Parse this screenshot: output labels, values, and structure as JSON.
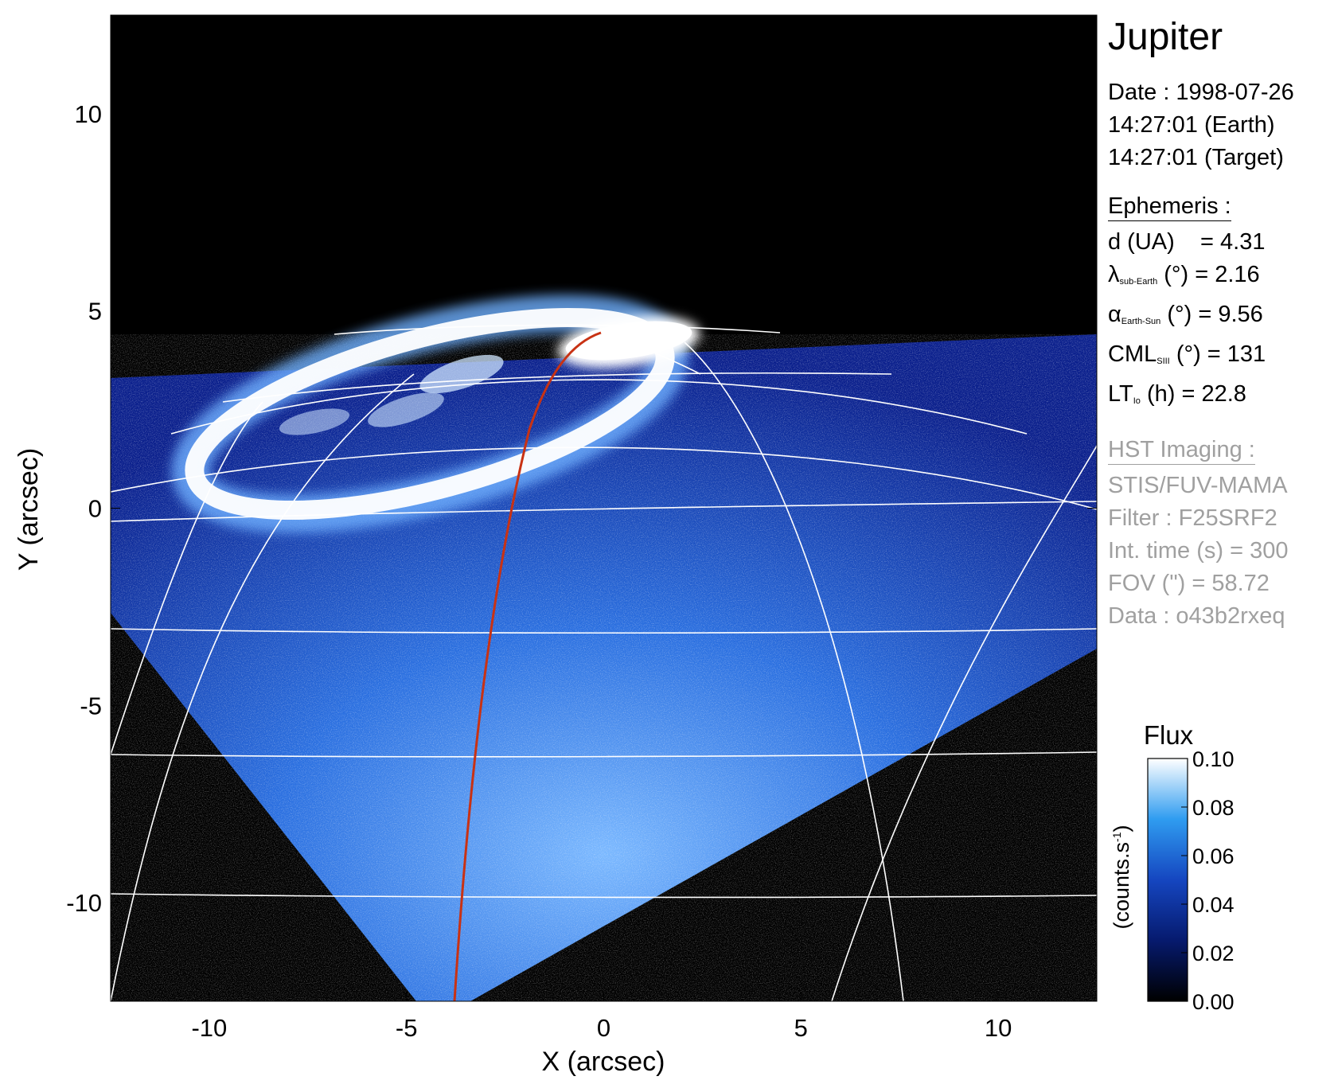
{
  "chart_data": {
    "type": "heatmap",
    "title": "Jupiter",
    "xlabel": "X (arcsec)",
    "ylabel": "Y (arcsec)",
    "xlim": [
      -12.5,
      12.5
    ],
    "ylim": [
      -12.5,
      12.5
    ],
    "x_ticks": [
      -10,
      -5,
      0,
      5,
      10
    ],
    "y_ticks": [
      10,
      5,
      0,
      -5,
      -10
    ],
    "x_tick_labels": [
      "-10",
      "-5",
      "0",
      "5",
      "10"
    ],
    "y_tick_labels": [
      "10",
      "5",
      "0",
      "-5",
      "-10"
    ],
    "colorbar": {
      "title": "Flux",
      "label": "(counts.s",
      "label_sup": "-1",
      "label_end": ")",
      "range": [
        0.0,
        0.1
      ],
      "ticks": [
        0.1,
        0.08,
        0.06,
        0.04,
        0.02,
        0.0
      ],
      "tick_labels": [
        "0.10",
        "0.08",
        "0.06",
        "0.04",
        "0.02",
        "0.00"
      ]
    },
    "colors": {
      "background": "#000000",
      "disk_low": "#0a1f8c",
      "disk_mid": "#2a6fe0",
      "disk_high": "#7ab8ff",
      "aurora": "#ffffff",
      "grid": "#ffffff",
      "footprint_line": "#c83214"
    }
  },
  "info": {
    "target": "Jupiter",
    "date": "Date : 1998-07-26",
    "time_earth": "14:27:01 (Earth)",
    "time_target": "14:27:01 (Target)",
    "ephemeris_title": "Ephemeris :",
    "d_label": "d (UA)",
    "d_value": "= 4.31",
    "lambda_symbol": "λ",
    "lambda_sub": "sub-Earth",
    "lambda_value": "(°) = 2.16",
    "alpha_symbol": "α",
    "alpha_sub": "Earth-Sun",
    "alpha_value": "(°) = 9.56",
    "cml_symbol": "CML",
    "cml_sub": "SIII",
    "cml_value": "(°) = 131",
    "lt_symbol": "LT",
    "lt_sub": "Io",
    "lt_value": "(h) = 22.8",
    "hst_title": "HST Imaging :",
    "instrument": "STIS/FUV-MAMA",
    "filter": "Filter : F25SRF2",
    "int_time": "Int. time (s) = 300",
    "fov": "FOV (\") = 58.72",
    "data_id": "Data : o43b2rxeq"
  }
}
